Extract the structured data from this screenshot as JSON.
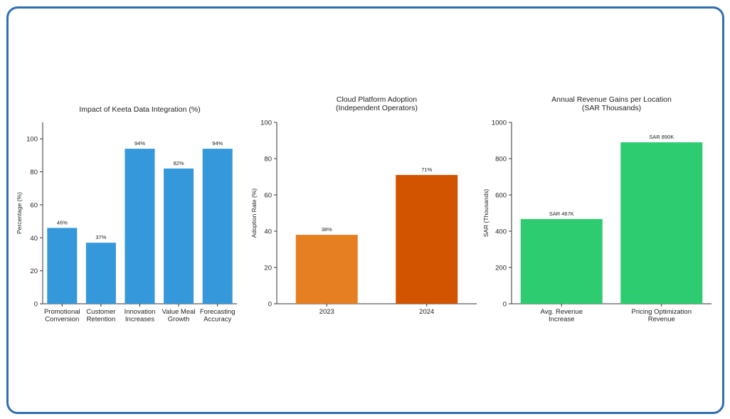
{
  "frame_color": "#2f6fb1",
  "chart_data": [
    {
      "type": "bar",
      "title": "Impact of Keeta Data Integration (%)",
      "ylabel": "Percentage (%)",
      "xlabel": "",
      "ylim": [
        0,
        110
      ],
      "yticks": [
        0,
        20,
        40,
        60,
        80,
        100
      ],
      "categories": [
        [
          "Promotional",
          "Conversion"
        ],
        [
          "Customer",
          "Retention"
        ],
        [
          "Innovation",
          "Increases"
        ],
        [
          "Value Meal",
          "Growth"
        ],
        [
          "Forecasting",
          "Accuracy"
        ]
      ],
      "values": [
        46,
        37,
        94,
        82,
        94
      ],
      "data_labels": [
        "46%",
        "37%",
        "94%",
        "82%",
        "94%"
      ],
      "colors": [
        "#3498db",
        "#3498db",
        "#3498db",
        "#3498db",
        "#3498db"
      ],
      "grid": false
    },
    {
      "type": "bar",
      "title": [
        "Cloud Platform Adoption",
        "(Independent Operators)"
      ],
      "ylabel": "Adoption Rate (%)",
      "xlabel": "",
      "ylim": [
        0,
        100
      ],
      "yticks": [
        0,
        20,
        40,
        60,
        80,
        100
      ],
      "categories": [
        [
          "2023"
        ],
        [
          "2024"
        ]
      ],
      "values": [
        38,
        71
      ],
      "data_labels": [
        "38%",
        "71%"
      ],
      "colors": [
        "#e67e22",
        "#d35400"
      ],
      "grid": false
    },
    {
      "type": "bar",
      "title": [
        "Annual Revenue Gains per Location",
        "(SAR Thousands)"
      ],
      "ylabel": "SAR (Thousands)",
      "xlabel": "",
      "ylim": [
        0,
        1000
      ],
      "yticks": [
        0,
        200,
        400,
        600,
        800,
        1000
      ],
      "categories": [
        [
          "Avg. Revenue",
          "Increase"
        ],
        [
          "Pricing Optimization",
          "Revenue"
        ]
      ],
      "values": [
        467,
        890
      ],
      "data_labels": [
        "SAR 467K",
        "SAR 890K"
      ],
      "colors": [
        "#2ecc71",
        "#2ecc71"
      ],
      "grid": false
    }
  ]
}
